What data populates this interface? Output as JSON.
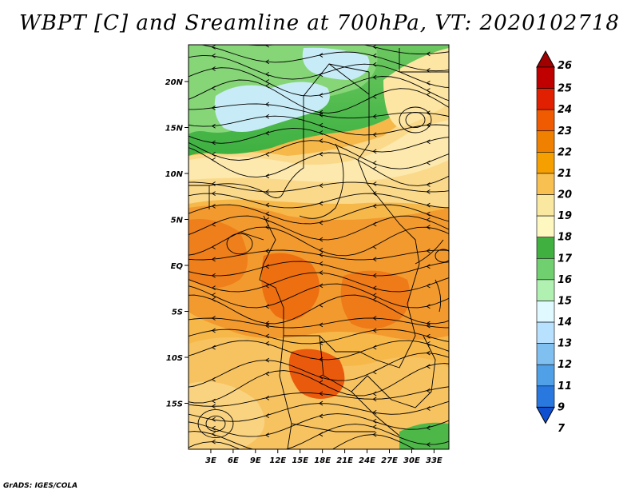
{
  "title": "WBPT [C] and Sreamline at 700hPa, VT: 2020102718",
  "footer": "GrADS: IGES/COLA",
  "map": {
    "lon_range": [
      0,
      35
    ],
    "lat_range": [
      -20,
      24
    ],
    "x_ticks": [
      "3E",
      "6E",
      "9E",
      "12E",
      "15E",
      "18E",
      "21E",
      "24E",
      "27E",
      "30E",
      "33E"
    ],
    "x_tick_values": [
      3,
      6,
      9,
      12,
      15,
      18,
      21,
      24,
      27,
      30,
      33
    ],
    "y_ticks": [
      "20N",
      "15N",
      "10N",
      "5N",
      "EQ",
      "5S",
      "10S",
      "15S"
    ],
    "y_tick_values": [
      20,
      15,
      10,
      5,
      0,
      -5,
      -10,
      -15
    ]
  },
  "colorbar": {
    "levels": [
      "26",
      "25",
      "24",
      "23",
      "22",
      "21",
      "20",
      "19",
      "18",
      "17",
      "16",
      "15",
      "14",
      "13",
      "12",
      "11",
      "9",
      "7"
    ],
    "colors": [
      "#a00000",
      "#c00000",
      "#e02000",
      "#f05a00",
      "#f08000",
      "#f5a000",
      "#f8c050",
      "#fae8a0",
      "#fff7c0",
      "#40b040",
      "#70d070",
      "#b0f0b0",
      "#e0f8ff",
      "#b8e0ff",
      "#80c0f0",
      "#50a0e8",
      "#2878e0",
      "#1050d0"
    ]
  }
}
